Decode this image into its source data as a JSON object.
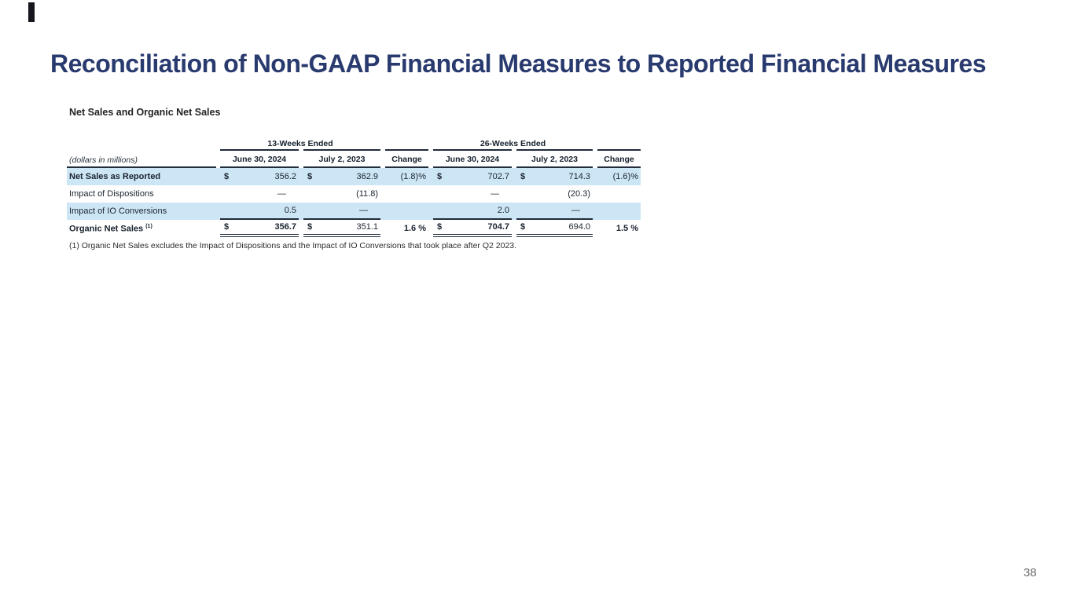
{
  "slide": {
    "title": "Reconciliation of Non-GAAP Financial Measures to Reported Financial Measures",
    "title_color": "#293a6e",
    "page_number": "38"
  },
  "table": {
    "heading": "Net Sales and Organic Net Sales",
    "units_label": "(dollars in millions)",
    "group_headers": [
      "13-Weeks Ended",
      "26-Weeks Ended"
    ],
    "column_headers": [
      "June 30, 2024",
      "July 2, 2023",
      "Change",
      "June 30, 2024",
      "July 2, 2023",
      "Change"
    ],
    "rows": [
      {
        "label": "Net Sales as Reported",
        "cells": [
          {
            "d": "$",
            "v": "356.2"
          },
          {
            "d": "$",
            "v": "362.9"
          },
          {
            "v": "(1.8)%"
          },
          {
            "d": "$",
            "v": "702.7"
          },
          {
            "d": "$",
            "v": "714.3"
          },
          {
            "v": "(1.6)%"
          }
        ]
      },
      {
        "label": "Impact of Dispositions",
        "cells": [
          {
            "v": "—"
          },
          {
            "v": "(11.8)"
          },
          {
            "v": ""
          },
          {
            "v": "—"
          },
          {
            "v": "(20.3)"
          },
          {
            "v": ""
          }
        ]
      },
      {
        "label": "Impact of IO Conversions",
        "cells": [
          {
            "v": "0.5"
          },
          {
            "v": "—"
          },
          {
            "v": ""
          },
          {
            "v": "2.0"
          },
          {
            "v": "—"
          },
          {
            "v": ""
          }
        ]
      },
      {
        "label": "Organic Net Sales",
        "label_sup": "(1)",
        "cells": [
          {
            "d": "$",
            "v": "356.7",
            "b": true
          },
          {
            "d": "$",
            "v": "351.1"
          },
          {
            "v": "1.6 %",
            "b": true
          },
          {
            "d": "$",
            "v": "704.7",
            "b": true
          },
          {
            "d": "$",
            "v": "694.0"
          },
          {
            "v": "1.5 %",
            "b": true
          }
        ]
      }
    ],
    "footnote": "(1) Organic Net Sales excludes the Impact of Dispositions and the Impact of IO Conversions that took place after Q2 2023.",
    "shade_color": "#cde6f5"
  }
}
